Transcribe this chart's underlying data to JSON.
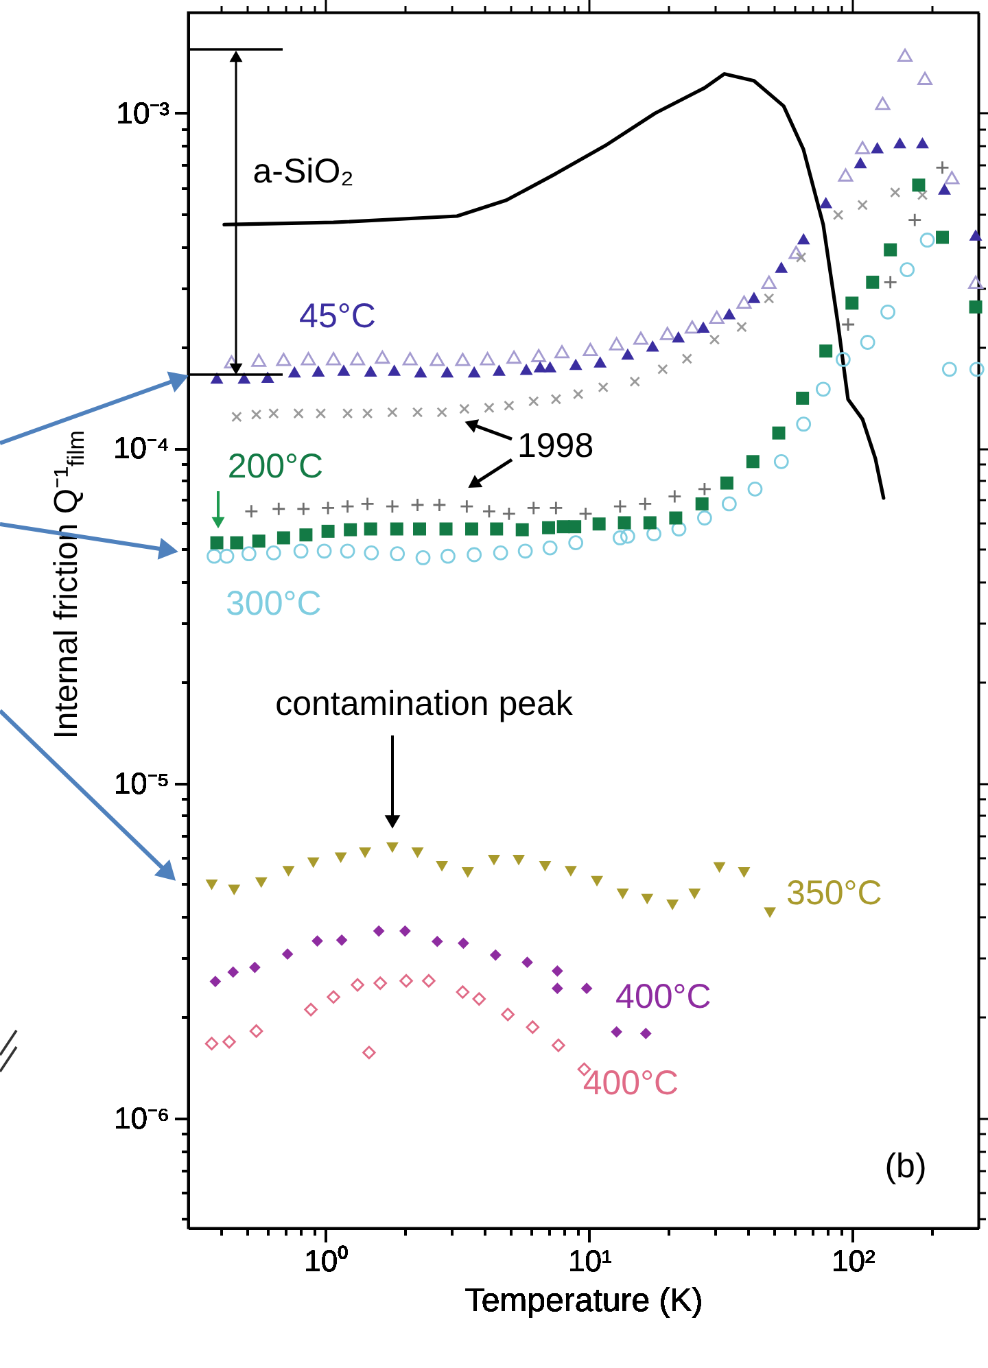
{
  "chart_data": {
    "type": "scatter",
    "xlabel": "Temperature (K)",
    "ylabel": "Internal friction Q⁻¹$_{film}$",
    "log": "xy",
    "grid": false,
    "xlim": [
      0.3,
      300
    ],
    "ylim": [
      4.7e-07,
      0.002
    ],
    "xticks": [
      {
        "value": 0.4,
        "label": null
      },
      {
        "value": 0.5,
        "label": null
      },
      {
        "value": 0.6,
        "label": null
      },
      {
        "value": 0.7,
        "label": null
      },
      {
        "value": 0.8,
        "label": null
      },
      {
        "value": 0.9,
        "label": null
      },
      {
        "value": 1,
        "label": "10⁰"
      },
      {
        "value": 2,
        "label": null
      },
      {
        "value": 3,
        "label": null
      },
      {
        "value": 4,
        "label": null
      },
      {
        "value": 5,
        "label": null
      },
      {
        "value": 6,
        "label": null
      },
      {
        "value": 7,
        "label": null
      },
      {
        "value": 8,
        "label": null
      },
      {
        "value": 9,
        "label": null
      },
      {
        "value": 10,
        "label": "10¹"
      },
      {
        "value": 20,
        "label": null
      },
      {
        "value": 30,
        "label": null
      },
      {
        "value": 40,
        "label": null
      },
      {
        "value": 50,
        "label": null
      },
      {
        "value": 60,
        "label": null
      },
      {
        "value": 70,
        "label": null
      },
      {
        "value": 80,
        "label": null
      },
      {
        "value": 90,
        "label": null
      },
      {
        "value": 100,
        "label": "10²"
      },
      {
        "value": 200,
        "label": null
      }
    ],
    "yticks": [
      {
        "value": 5e-07,
        "label": null
      },
      {
        "value": 6e-07,
        "label": null
      },
      {
        "value": 7e-07,
        "label": null
      },
      {
        "value": 8e-07,
        "label": null
      },
      {
        "value": 9e-07,
        "label": null
      },
      {
        "value": 1e-06,
        "label": "10⁻⁶"
      },
      {
        "value": 2e-06,
        "label": null
      },
      {
        "value": 3e-06,
        "label": null
      },
      {
        "value": 4e-06,
        "label": null
      },
      {
        "value": 5e-06,
        "label": null
      },
      {
        "value": 6e-06,
        "label": null
      },
      {
        "value": 7e-06,
        "label": null
      },
      {
        "value": 8e-06,
        "label": null
      },
      {
        "value": 9e-06,
        "label": null
      },
      {
        "value": 1e-05,
        "label": "10⁻⁵"
      },
      {
        "value": 2e-05,
        "label": null
      },
      {
        "value": 3e-05,
        "label": null
      },
      {
        "value": 4e-05,
        "label": null
      },
      {
        "value": 5e-05,
        "label": null
      },
      {
        "value": 6e-05,
        "label": null
      },
      {
        "value": 7e-05,
        "label": null
      },
      {
        "value": 8e-05,
        "label": null
      },
      {
        "value": 9e-05,
        "label": null
      },
      {
        "value": 0.0001,
        "label": "10⁻⁴"
      },
      {
        "value": 0.0002,
        "label": null
      },
      {
        "value": 0.0003,
        "label": null
      },
      {
        "value": 0.0004,
        "label": null
      },
      {
        "value": 0.0005,
        "label": null
      },
      {
        "value": 0.0006,
        "label": null
      },
      {
        "value": 0.0007,
        "label": null
      },
      {
        "value": 0.0008,
        "label": null
      },
      {
        "value": 0.0009,
        "label": null
      },
      {
        "value": 0.001,
        "label": "10⁻³"
      }
    ],
    "annotations": [
      "1998",
      "contamination peak",
      "(b)"
    ],
    "series": [
      {
        "name": "a-SiO₂",
        "type": "line",
        "color": "#000000",
        "marker": "none",
        "line_style": "solid",
        "x": [
          0.412,
          1.07,
          3.15,
          4.85,
          7.47,
          11.5,
          17.8,
          27.4,
          32.6,
          42.2,
          54.7,
          65.0,
          77.3,
          88.0,
          96.0,
          109,
          122,
          131
        ],
        "values": [
          0.000465,
          0.000472,
          0.000493,
          0.00055,
          0.00066,
          0.0008,
          0.001,
          0.00119,
          0.00131,
          0.00125,
          0.00105,
          0.00078,
          0.000465,
          0.000234,
          0.00014,
          0.000122,
          9.3e-05,
          7.1e-05
        ]
      },
      {
        "color": "#a49bd0",
        "marker": "triangle-open",
        "x": [
          0.439,
          0.557,
          0.692,
          0.859,
          1.07,
          1.32,
          1.64,
          2.09,
          2.65,
          3.31,
          4.11,
          5.18,
          6.43,
          7.88,
          10.1,
          12.7,
          15.7,
          19.8,
          24.6,
          30.5,
          38.7,
          48.1,
          61.0,
          94.0,
          109,
          130,
          158,
          188,
          238,
          293
        ],
        "values": [
          0.000181,
          0.000183,
          0.000184,
          0.000185,
          0.000185,
          0.000185,
          0.000187,
          0.000185,
          0.000184,
          0.000184,
          0.000185,
          0.000187,
          0.000189,
          0.000194,
          0.000197,
          0.000205,
          0.000213,
          0.00022,
          0.00023,
          0.000246,
          0.000273,
          0.000313,
          0.000384,
          0.000654,
          0.000789,
          0.00107,
          0.00149,
          0.00127,
          0.000642,
          0.000313
        ]
      },
      {
        "name": "45°C",
        "color": "#3b2ea0",
        "marker": "triangle",
        "x": [
          0.386,
          0.49,
          0.602,
          0.761,
          0.937,
          1.17,
          1.48,
          1.82,
          2.29,
          2.89,
          3.66,
          4.55,
          5.77,
          6.51,
          7.1,
          8.89,
          11.0,
          14.0,
          17.4,
          21.8,
          27.1,
          34.0,
          42.2,
          53.6,
          65.1,
          79.1,
          107,
          124,
          151,
          184,
          223,
          293
        ],
        "values": [
          0.000162,
          0.000162,
          0.000163,
          0.000169,
          0.00017,
          0.000171,
          0.00017,
          0.000171,
          0.000169,
          0.000169,
          0.000169,
          0.000171,
          0.000172,
          0.000175,
          0.000175,
          0.000178,
          0.000181,
          0.000191,
          0.000202,
          0.000215,
          0.00023,
          0.000252,
          0.000282,
          0.000347,
          0.000422,
          0.000541,
          0.000712,
          0.000789,
          0.000816,
          0.000816,
          0.000594,
          0.000433
        ]
      },
      {
        "color": "#9a9a9a",
        "marker": "x",
        "x": [
          0.459,
          0.545,
          0.634,
          0.788,
          0.957,
          1.21,
          1.44,
          1.79,
          2.23,
          2.76,
          3.36,
          4.17,
          4.96,
          6.15,
          7.48,
          9.08,
          11.3,
          14.9,
          19.0,
          23.5,
          29.9,
          37.9,
          48.1,
          63.7,
          88.1,
          109,
          145,
          184
        ],
        "values": [
          0.000124,
          0.000126,
          0.000127,
          0.000127,
          0.000127,
          0.000127,
          0.000127,
          0.000128,
          0.000128,
          0.000128,
          0.000131,
          0.000132,
          0.000134,
          0.000138,
          0.00014,
          0.000145,
          0.000152,
          0.000158,
          0.000172,
          0.000185,
          0.000211,
          0.00023,
          0.00028,
          0.000371,
          0.000497,
          0.000532,
          0.00058,
          0.00057
        ]
      },
      {
        "color": "#6e6e6e",
        "marker": "cross",
        "x": [
          0.522,
          0.663,
          0.823,
          1.02,
          1.21,
          1.44,
          1.79,
          2.23,
          2.7,
          3.43,
          4.17,
          4.96,
          6.15,
          7.48,
          9.69,
          13.1,
          16.3,
          21.1,
          27.4,
          96.1,
          139,
          172,
          219
        ],
        "values": [
          6.48e-05,
          6.59e-05,
          6.59e-05,
          6.63e-05,
          6.7e-05,
          6.82e-05,
          6.7e-05,
          6.77e-05,
          6.77e-05,
          6.7e-05,
          6.48e-05,
          6.37e-05,
          6.63e-05,
          6.63e-05,
          6.37e-05,
          6.7e-05,
          6.82e-05,
          7.18e-05,
          7.55e-05,
          0.000234,
          0.000313,
          0.00048,
          0.000688
        ]
      },
      {
        "name": "300°C",
        "color": "#7fcde0",
        "marker": "circle-open",
        "x": [
          0.377,
          0.421,
          0.511,
          0.634,
          0.805,
          0.987,
          1.21,
          1.49,
          1.87,
          2.34,
          2.91,
          3.66,
          4.61,
          5.72,
          7.1,
          8.89,
          13.1,
          14.0,
          17.6,
          21.9,
          27.4,
          34.0,
          42.6,
          53.6,
          65.1,
          77.3,
          92.0,
          114,
          136,
          161,
          192,
          233,
          296
        ],
        "values": [
          4.76e-05,
          4.76e-05,
          4.84e-05,
          4.87e-05,
          4.93e-05,
          4.93e-05,
          4.93e-05,
          4.87e-05,
          4.84e-05,
          4.71e-05,
          4.76e-05,
          4.81e-05,
          4.87e-05,
          4.93e-05,
          5.04e-05,
          5.22e-05,
          5.4e-05,
          5.46e-05,
          5.55e-05,
          5.74e-05,
          6.19e-05,
          6.82e-05,
          7.55e-05,
          9.12e-05,
          0.000118,
          0.00015,
          0.000184,
          0.000207,
          0.000255,
          0.000341,
          0.000418,
          0.000172,
          0.000172
        ]
      },
      {
        "name": "200°C",
        "color": "#137a45",
        "marker": "square",
        "x": [
          0.386,
          0.459,
          0.557,
          0.692,
          0.841,
          1.02,
          1.24,
          1.48,
          1.86,
          2.27,
          2.86,
          3.58,
          4.45,
          5.57,
          7.01,
          7.98,
          8.81,
          10.9,
          13.6,
          17.0,
          21.3,
          26.8,
          33.3,
          41.8,
          52.4,
          64.5,
          79.1,
          99.4,
          119,
          139,
          178,
          219,
          293
        ],
        "values": [
          5.22e-05,
          5.22e-05,
          5.28e-05,
          5.4e-05,
          5.51e-05,
          5.65e-05,
          5.71e-05,
          5.74e-05,
          5.74e-05,
          5.74e-05,
          5.74e-05,
          5.74e-05,
          5.74e-05,
          5.71e-05,
          5.79e-05,
          5.83e-05,
          5.83e-05,
          5.94e-05,
          5.99e-05,
          5.99e-05,
          6.19e-05,
          6.82e-05,
          7.87e-05,
          9.12e-05,
          0.000111,
          0.000141,
          0.000195,
          0.000271,
          0.000313,
          0.000391,
          0.00061,
          0.000426,
          0.000264
        ]
      },
      {
        "name": "350°C",
        "color": "#a89a2c",
        "marker": "triangle-down",
        "x": [
          0.369,
          0.449,
          0.569,
          0.722,
          0.897,
          1.14,
          1.41,
          1.79,
          2.23,
          2.76,
          3.46,
          4.35,
          5.4,
          6.8,
          8.51,
          10.7,
          13.4,
          16.6,
          20.7,
          25.1,
          31.2,
          38.7,
          48.5
        ],
        "values": [
          4.97e-06,
          4.8e-06,
          5.05e-06,
          5.46e-06,
          5.79e-06,
          5.99e-06,
          6.2e-06,
          6.42e-06,
          6.2e-06,
          5.65e-06,
          5.41e-06,
          5.89e-06,
          5.89e-06,
          5.65e-06,
          5.46e-06,
          5.1e-06,
          4.67e-06,
          4.51e-06,
          4.33e-06,
          4.67e-06,
          5.6e-06,
          5.41e-06,
          4.11e-06
        ]
      },
      {
        "name": "400°C",
        "color": "#8e2ca0",
        "marker": "diamond",
        "x": [
          0.381,
          0.445,
          0.538,
          0.716,
          0.929,
          1.15,
          1.59,
          2.0,
          2.65,
          3.33,
          4.41,
          5.82,
          7.57,
          7.57,
          9.78,
          12.7,
          16.4
        ],
        "values": [
          2.56e-06,
          2.73e-06,
          2.82e-06,
          3.09e-06,
          3.38e-06,
          3.4e-06,
          3.62e-06,
          3.62e-06,
          3.37e-06,
          3.33e-06,
          3.07e-06,
          2.92e-06,
          2.75e-06,
          2.44e-06,
          2.44e-06,
          1.81e-06,
          1.79e-06
        ]
      },
      {
        "name": "400°C",
        "color": "#e06a86",
        "marker": "diamond-open",
        "x": [
          0.369,
          0.43,
          0.545,
          0.878,
          1.07,
          1.32,
          1.46,
          1.61,
          2.02,
          2.46,
          3.31,
          3.82,
          4.91,
          6.1,
          7.64,
          9.57
        ],
        "values": [
          1.67e-06,
          1.69e-06,
          1.82e-06,
          2.11e-06,
          2.3e-06,
          2.5e-06,
          1.57e-06,
          2.53e-06,
          2.57e-06,
          2.57e-06,
          2.38e-06,
          2.27e-06,
          2.04e-06,
          1.87e-06,
          1.65e-06,
          1.4e-06
        ]
      }
    ]
  }
}
